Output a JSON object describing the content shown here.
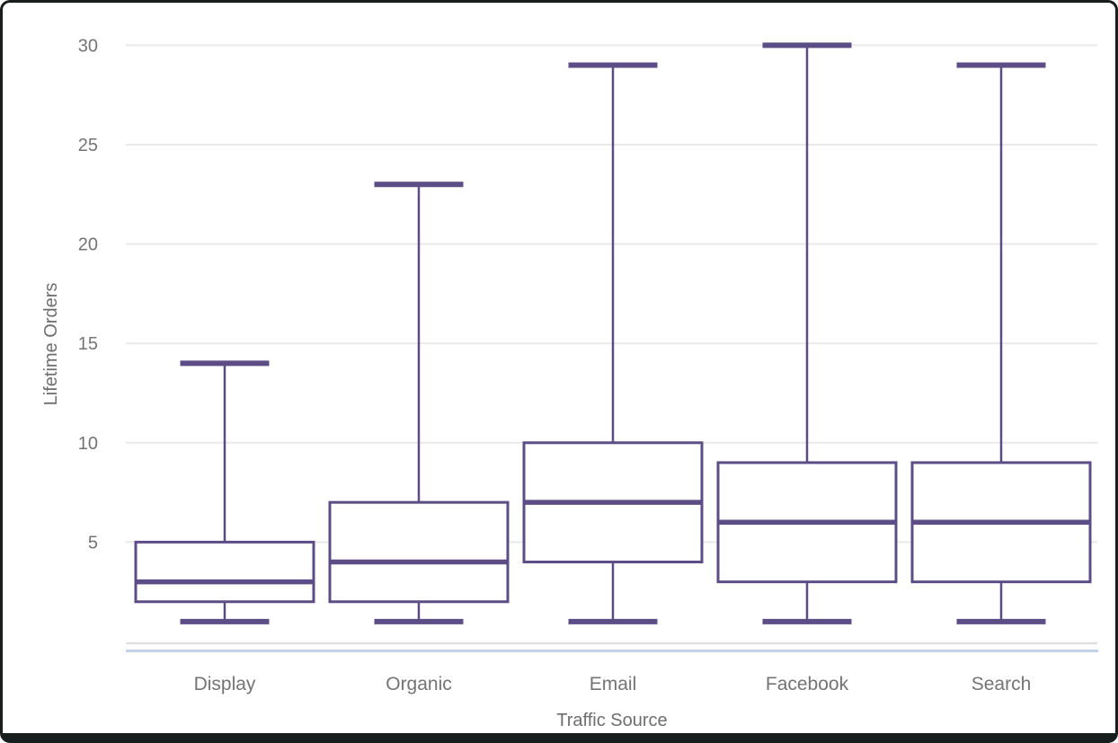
{
  "chart_data": {
    "type": "boxplot",
    "xlabel": "Traffic Source",
    "ylabel": "Lifetime Orders",
    "categories": [
      "Display",
      "Organic",
      "Email",
      "Facebook",
      "Search"
    ],
    "series": [
      {
        "name": "Display",
        "min": 1,
        "q1": 2,
        "median": 3,
        "q3": 5,
        "max": 14
      },
      {
        "name": "Organic",
        "min": 1,
        "q1": 2,
        "median": 4,
        "q3": 7,
        "max": 23
      },
      {
        "name": "Email",
        "min": 1,
        "q1": 4,
        "median": 7,
        "q3": 10,
        "max": 29
      },
      {
        "name": "Facebook",
        "min": 1,
        "q1": 3,
        "median": 6,
        "q3": 9,
        "max": 30
      },
      {
        "name": "Search",
        "min": 1,
        "q1": 3,
        "median": 6,
        "q3": 9,
        "max": 29
      }
    ],
    "y_ticks": [
      5,
      10,
      15,
      20,
      25,
      30
    ],
    "ylim": [
      0,
      31
    ],
    "grid": true,
    "legend": "none",
    "colors": {
      "box_stroke": "#5d4d87",
      "box_fill": "#ffffff",
      "gridline": "#e9e9e9",
      "baseline_gray": "#e0e0e0",
      "baseline_blue": "#c5d1ea",
      "tick_text": "#747474",
      "axis_title_text": "#6e6e6e"
    }
  }
}
